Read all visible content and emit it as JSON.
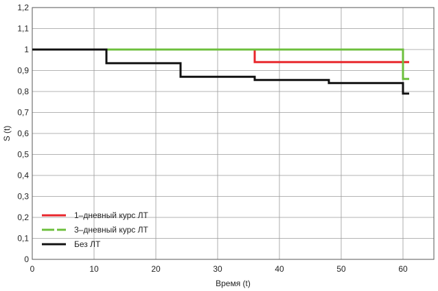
{
  "chart_data": {
    "type": "line",
    "step": true,
    "xlabel": "Время (t)",
    "ylabel": "S (t)",
    "xlim": [
      0,
      65
    ],
    "ylim": [
      0,
      1.2
    ],
    "x_ticks": [
      0,
      10,
      20,
      30,
      40,
      50,
      60
    ],
    "y_ticks": [
      0,
      0.1,
      0.2,
      0.3,
      0.4,
      0.5,
      0.6,
      0.7,
      0.8,
      0.9,
      1,
      1.1,
      1.2
    ],
    "x_tick_labels": [
      "0",
      "10",
      "20",
      "30",
      "40",
      "50",
      "60"
    ],
    "y_tick_labels": [
      "0",
      "0,1",
      "0,2",
      "0,3",
      "0,4",
      "0,5",
      "0,6",
      "0,7",
      "0,8",
      "0,9",
      "1",
      "1,1",
      "1,2"
    ],
    "grid": true,
    "legend_position": "bottom-left",
    "series": [
      {
        "name": "1–дневный курс ЛТ",
        "color": "#e8262b",
        "dash": "solid",
        "x": [
          0,
          36,
          61
        ],
        "y": [
          1,
          0.94,
          0.94
        ]
      },
      {
        "name": "3–дневный курс ЛТ",
        "color": "#6cbf3c",
        "dash": "dashed",
        "x": [
          0,
          60,
          61
        ],
        "y": [
          1,
          0.86,
          0.86
        ]
      },
      {
        "name": "Без ЛТ",
        "color": "#111111",
        "dash": "solid",
        "x": [
          0,
          12,
          24,
          36,
          48,
          60,
          61
        ],
        "y": [
          1,
          0.935,
          0.87,
          0.855,
          0.84,
          0.79,
          0.79
        ]
      }
    ]
  }
}
